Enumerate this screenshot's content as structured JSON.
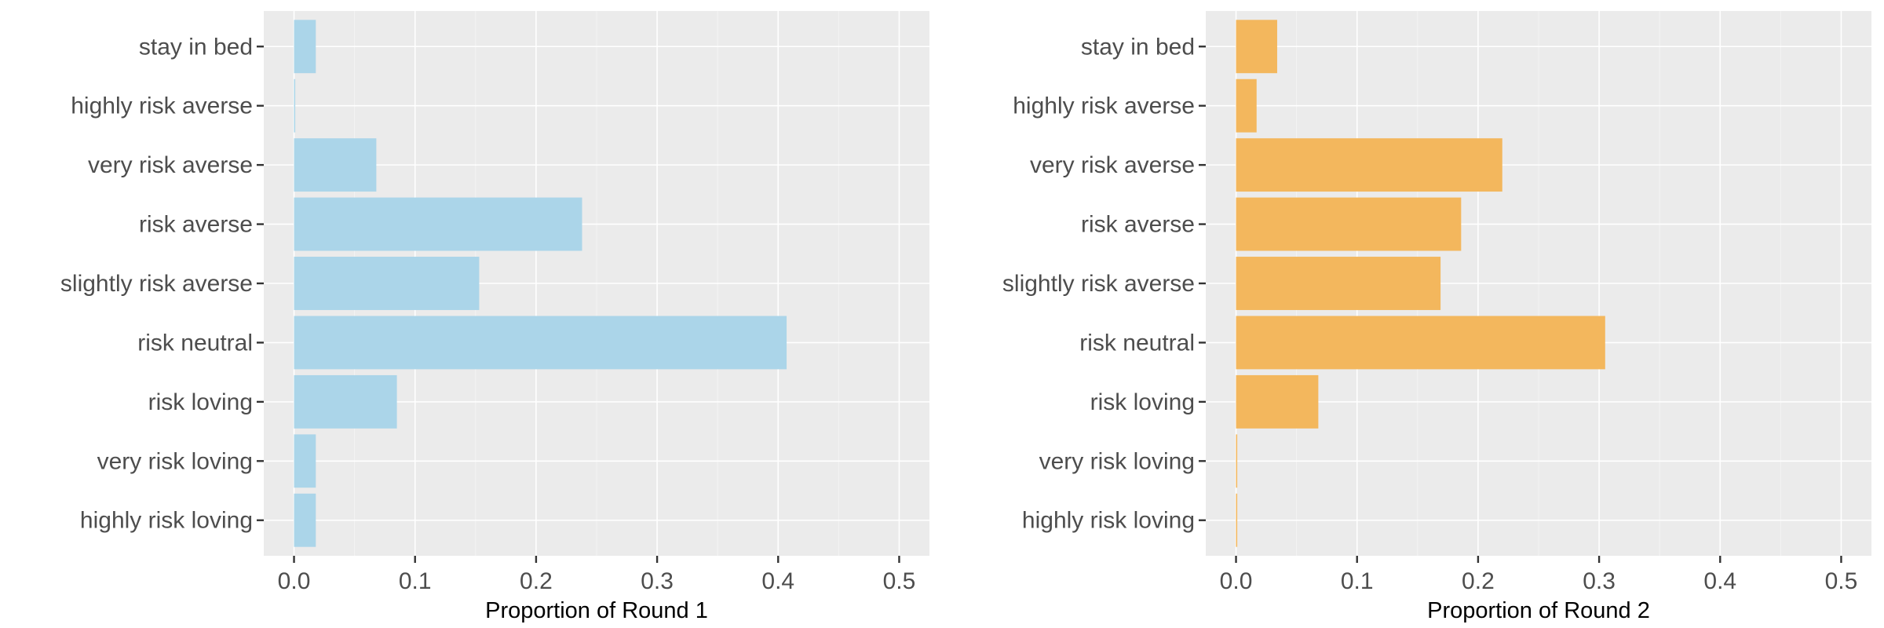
{
  "chart_data": [
    {
      "type": "bar",
      "orientation": "horizontal",
      "categories": [
        "stay in bed",
        "highly risk averse",
        "very risk averse",
        "risk averse",
        "slightly risk averse",
        "risk neutral",
        "risk loving",
        "very risk loving",
        "highly risk loving"
      ],
      "values": [
        0.018,
        0.001,
        0.068,
        0.238,
        0.153,
        0.407,
        0.085,
        0.018,
        0.018
      ],
      "xlabel": "Proportion of Round 1",
      "ylabel": "",
      "xlim": [
        -0.025,
        0.525
      ],
      "xticks": [
        0.0,
        0.1,
        0.2,
        0.3,
        0.4,
        0.5
      ],
      "xtick_labels": [
        "0.0",
        "0.1",
        "0.2",
        "0.3",
        "0.4",
        "0.5"
      ],
      "bar_color": "#abd5e9",
      "grid": true,
      "legend": "none"
    },
    {
      "type": "bar",
      "orientation": "horizontal",
      "categories": [
        "stay in bed",
        "highly risk averse",
        "very risk averse",
        "risk averse",
        "slightly risk averse",
        "risk neutral",
        "risk loving",
        "very risk loving",
        "highly risk loving"
      ],
      "values": [
        0.034,
        0.017,
        0.22,
        0.186,
        0.169,
        0.305,
        0.068,
        0.001,
        0.001
      ],
      "xlabel": "Proportion of Round 2",
      "ylabel": "",
      "xlim": [
        -0.025,
        0.525
      ],
      "xticks": [
        0.0,
        0.1,
        0.2,
        0.3,
        0.4,
        0.5
      ],
      "xtick_labels": [
        "0.0",
        "0.1",
        "0.2",
        "0.3",
        "0.4",
        "0.5"
      ],
      "bar_color": "#f3b75d",
      "grid": true,
      "legend": "none"
    }
  ]
}
